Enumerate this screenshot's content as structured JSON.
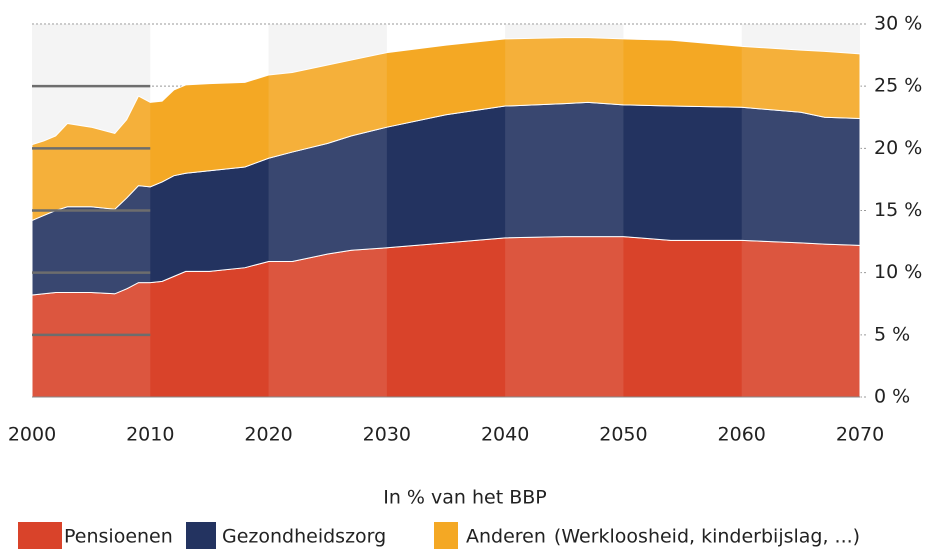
{
  "chart_data": {
    "type": "stacked-area",
    "x": [
      2000,
      2001,
      2002,
      2003,
      2005,
      2007,
      2008,
      2009,
      2010,
      2011,
      2012,
      2013,
      2015,
      2018,
      2020,
      2022,
      2025,
      2027,
      2030,
      2035,
      2040,
      2045,
      2047,
      2050,
      2054,
      2060,
      2065,
      2067,
      2070
    ],
    "series": [
      {
        "name": "Pensioenen",
        "color": "#d9432a",
        "values": [
          8.2,
          8.3,
          8.4,
          8.4,
          8.4,
          8.3,
          8.7,
          9.2,
          9.2,
          9.3,
          9.7,
          10.1,
          10.1,
          10.4,
          10.9,
          10.9,
          11.5,
          11.8,
          12.0,
          12.4,
          12.8,
          12.9,
          12.9,
          12.9,
          12.6,
          12.6,
          12.4,
          12.3,
          12.2
        ]
      },
      {
        "name": "Gezondheidszorg",
        "color": "#233360",
        "values": [
          6.0,
          6.3,
          6.6,
          6.9,
          6.9,
          6.8,
          7.3,
          7.8,
          7.7,
          8.0,
          8.1,
          7.9,
          8.1,
          8.1,
          8.3,
          8.8,
          8.9,
          9.2,
          9.7,
          10.3,
          10.6,
          10.7,
          10.8,
          10.6,
          10.8,
          10.7,
          10.5,
          10.2,
          10.2
        ]
      },
      {
        "name": "Anderen",
        "color": "#f4a824",
        "values": [
          6.1,
          6.0,
          6.0,
          6.7,
          6.4,
          6.1,
          6.3,
          7.2,
          6.8,
          6.5,
          6.9,
          7.1,
          7.0,
          6.8,
          6.7,
          6.4,
          6.3,
          6.1,
          6.0,
          5.6,
          5.4,
          5.3,
          5.2,
          5.3,
          5.3,
          4.9,
          5.0,
          5.3,
          5.2
        ]
      }
    ],
    "legend_note": "(Werkloosheid, kinderbijslag, ...)",
    "x_label": "In % van het BBP",
    "xlim": [
      2000,
      2070
    ],
    "xticks": [
      2000,
      2010,
      2020,
      2030,
      2040,
      2050,
      2060,
      2070
    ],
    "ylim": [
      0,
      30
    ],
    "yticks": [
      {
        "value": 0,
        "label": "0 %"
      },
      {
        "value": 5,
        "label": "5 %"
      },
      {
        "value": 10,
        "label": "10 %"
      },
      {
        "value": 15,
        "label": "15 %"
      },
      {
        "value": 20,
        "label": "20 %"
      },
      {
        "value": 25,
        "label": "25 %"
      },
      {
        "value": 30,
        "label": "30 %"
      }
    ],
    "grid": true
  }
}
